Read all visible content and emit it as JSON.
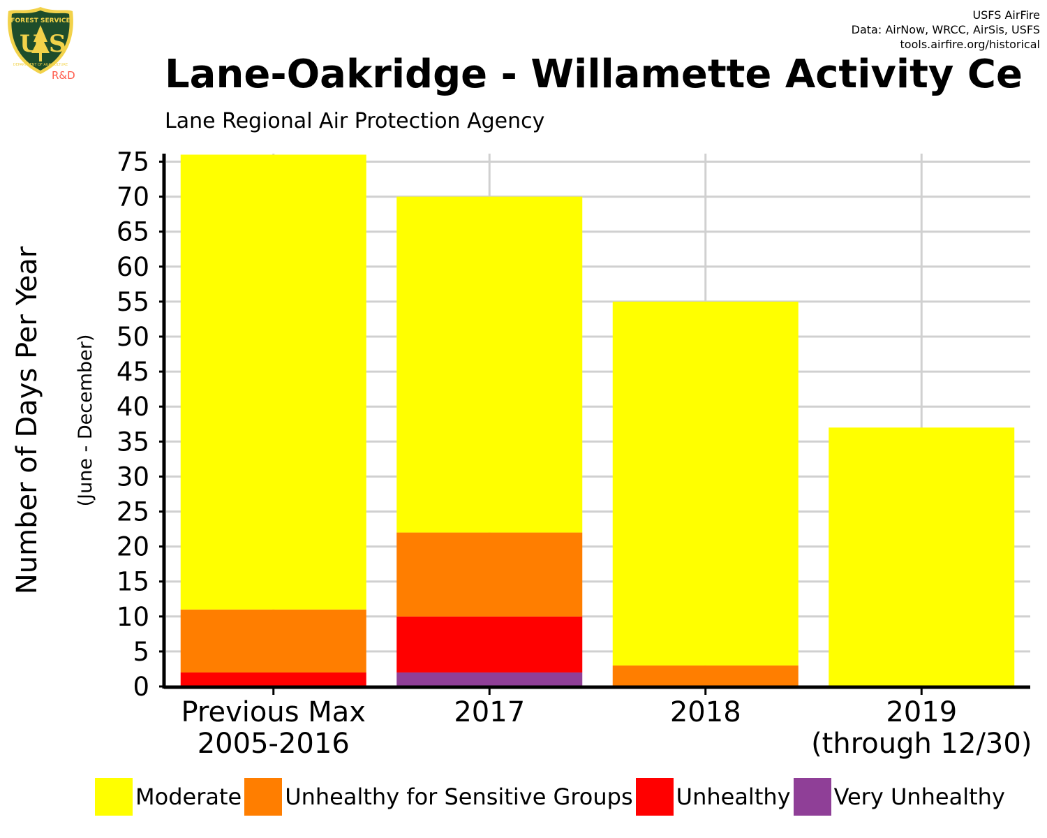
{
  "header": {
    "credit_lines": [
      "USFS AirFire",
      "Data: AirNow, WRCC, AirSis, USFS",
      "tools.airfire.org/historical"
    ],
    "logo": {
      "icon": "usfs-shield-logo",
      "text_top": "FOREST SERVICE",
      "letters": "US",
      "text_bottom": "DEPARTMENT OF AGRICULTURE",
      "tag": "R&D"
    }
  },
  "chart_data": {
    "type": "bar",
    "stacked": true,
    "title": "Lane-Oakridge - Willamette Activity Ce",
    "subtitle": "Lane Regional Air Protection Agency",
    "ylabel": "Number of Days Per Year",
    "ylabel_sub": "(June - December)",
    "xlabel": "",
    "ylim": [
      0,
      75
    ],
    "yticks": [
      0,
      5,
      10,
      15,
      20,
      25,
      30,
      35,
      40,
      45,
      50,
      55,
      60,
      65,
      70,
      75
    ],
    "grid": true,
    "legend_position": "bottom",
    "categories": [
      [
        "Previous Max",
        "2005-2016"
      ],
      [
        "2017"
      ],
      [
        "2018"
      ],
      [
        "2019",
        "(through 12/30)"
      ]
    ],
    "series": [
      {
        "name": "Moderate",
        "color": "#ffff00",
        "values": [
          65,
          48,
          52,
          37
        ]
      },
      {
        "name": "Unhealthy for Sensitive Groups",
        "color": "#ff7e00",
        "values": [
          9,
          12,
          3,
          0
        ]
      },
      {
        "name": "Unhealthy",
        "color": "#ff0000",
        "values": [
          2,
          8,
          0,
          0
        ]
      },
      {
        "name": "Very Unhealthy",
        "color": "#8f3f97",
        "values": [
          0,
          2,
          0,
          0
        ]
      }
    ],
    "totals": [
      76,
      70,
      55,
      37
    ]
  }
}
